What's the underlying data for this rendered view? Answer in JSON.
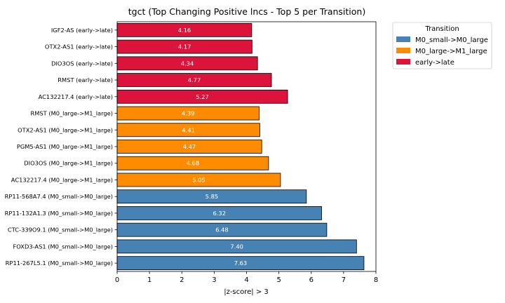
{
  "chart_data": {
    "type": "bar",
    "orientation": "horizontal",
    "title": "tgct (Top Changing Positive lncs - Top 5 per Transition)",
    "xlabel": "|z-score| > 3",
    "ylabel": "",
    "xlim": [
      0,
      8
    ],
    "xticks": [
      0,
      1,
      2,
      3,
      4,
      5,
      6,
      7,
      8
    ],
    "grid": false,
    "legend": {
      "title": "Transition",
      "placement": "outside-top-right",
      "entries": [
        {
          "name": "M0_small->M0_large",
          "color": "#4682b4"
        },
        {
          "name": "M0_large->M1_large",
          "color": "#ff8c00"
        },
        {
          "name": "early->late",
          "color": "#dc143c"
        }
      ]
    },
    "bars": [
      {
        "label": "IGF2-AS (early->late)",
        "value": 4.16,
        "value_label": "4.16",
        "series": "early->late"
      },
      {
        "label": "OTX2-AS1 (early->late)",
        "value": 4.17,
        "value_label": "4.17",
        "series": "early->late"
      },
      {
        "label": "DIO3OS (early->late)",
        "value": 4.34,
        "value_label": "4.34",
        "series": "early->late"
      },
      {
        "label": "RMST (early->late)",
        "value": 4.77,
        "value_label": "4.77",
        "series": "early->late"
      },
      {
        "label": "AC132217.4 (early->late)",
        "value": 5.27,
        "value_label": "5.27",
        "series": "early->late"
      },
      {
        "label": "RMST (M0_large->M1_large)",
        "value": 4.39,
        "value_label": "4.39",
        "series": "M0_large->M1_large"
      },
      {
        "label": "OTX2-AS1 (M0_large->M1_large)",
        "value": 4.41,
        "value_label": "4.41",
        "series": "M0_large->M1_large"
      },
      {
        "label": "PGM5-AS1 (M0_large->M1_large)",
        "value": 4.47,
        "value_label": "4.47",
        "series": "M0_large->M1_large"
      },
      {
        "label": "DIO3OS (M0_large->M1_large)",
        "value": 4.68,
        "value_label": "4.68",
        "series": "M0_large->M1_large"
      },
      {
        "label": "AC132217.4 (M0_large->M1_large)",
        "value": 5.05,
        "value_label": "5.05",
        "series": "M0_large->M1_large"
      },
      {
        "label": "RP11-568A7.4 (M0_small->M0_large)",
        "value": 5.85,
        "value_label": "5.85",
        "series": "M0_small->M0_large"
      },
      {
        "label": "RP11-132A1.3 (M0_small->M0_large)",
        "value": 6.32,
        "value_label": "6.32",
        "series": "M0_small->M0_large"
      },
      {
        "label": "CTC-339O9.1 (M0_small->M0_large)",
        "value": 6.48,
        "value_label": "6.48",
        "series": "M0_small->M0_large"
      },
      {
        "label": "FOXD3-AS1 (M0_small->M0_large)",
        "value": 7.4,
        "value_label": "7.40",
        "series": "M0_small->M0_large"
      },
      {
        "label": "RP11-267L5.1 (M0_small->M0_large)",
        "value": 7.63,
        "value_label": "7.63",
        "series": "M0_small->M0_large"
      }
    ]
  }
}
